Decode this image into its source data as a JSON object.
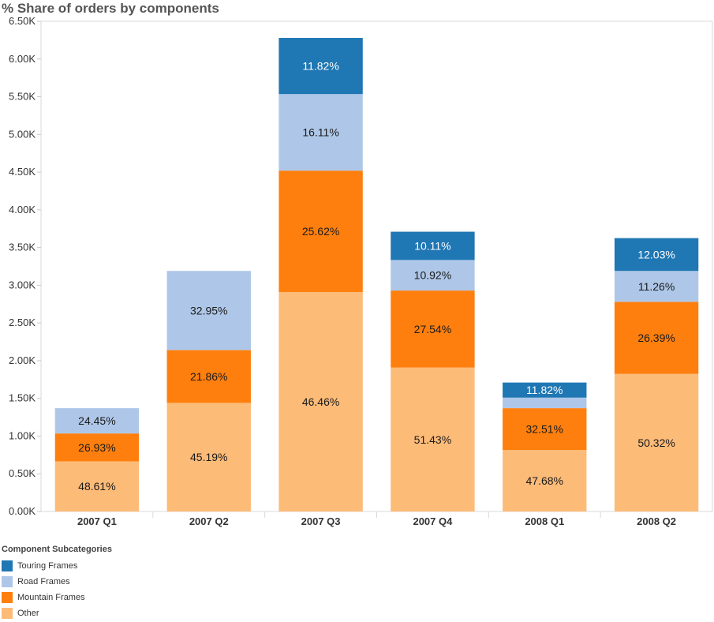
{
  "chart_data": {
    "type": "bar",
    "stacked": true,
    "title": "% Share of orders by components",
    "xlabel": "",
    "ylabel": "",
    "categories": [
      "2007 Q1",
      "2007 Q2",
      "2007 Q3",
      "2007 Q4",
      "2008 Q1",
      "2008 Q2"
    ],
    "yticks": [
      "0.00K",
      "0.50K",
      "1.00K",
      "1.50K",
      "2.00K",
      "2.50K",
      "3.00K",
      "3.50K",
      "4.00K",
      "4.50K",
      "5.00K",
      "5.50K",
      "6.00K",
      "6.50K"
    ],
    "ylim": [
      0,
      6500
    ],
    "grid": false,
    "legend_position": "bottom-left",
    "legend_title": "Component Subcategories",
    "series": [
      {
        "name": "Other",
        "color": "#FDBB78",
        "values": [
          665,
          1440,
          2910,
          1910,
          815,
          1825
        ],
        "labels": [
          "48.61%",
          "45.19%",
          "46.46%",
          "51.43%",
          "47.68%",
          "50.32%"
        ]
      },
      {
        "name": "Mountain Frames",
        "color": "#FF7F0E",
        "values": [
          370,
          700,
          1610,
          1020,
          555,
          955
        ],
        "labels": [
          "26.93%",
          "21.86%",
          "25.62%",
          "27.54%",
          "32.51%",
          "26.39%"
        ]
      },
      {
        "name": "Road Frames",
        "color": "#AEC7E8",
        "values": [
          335,
          1050,
          1015,
          405,
          140,
          410
        ],
        "labels": [
          "24.45%",
          "32.95%",
          "16.11%",
          "10.92%",
          "",
          "11.26%"
        ]
      },
      {
        "name": "Touring Frames",
        "color": "#1F77B4",
        "values": [
          0,
          0,
          745,
          375,
          200,
          435
        ],
        "labels": [
          "",
          "",
          "11.82%",
          "10.11%",
          "11.82%",
          "12.03%"
        ]
      }
    ]
  },
  "legend": {
    "title": "Component Subcategories",
    "items": [
      {
        "label": "Touring Frames",
        "color": "#1F77B4"
      },
      {
        "label": "Road Frames",
        "color": "#AEC7E8"
      },
      {
        "label": "Mountain Frames",
        "color": "#FF7F0E"
      },
      {
        "label": "Other",
        "color": "#FDBB78"
      }
    ]
  }
}
